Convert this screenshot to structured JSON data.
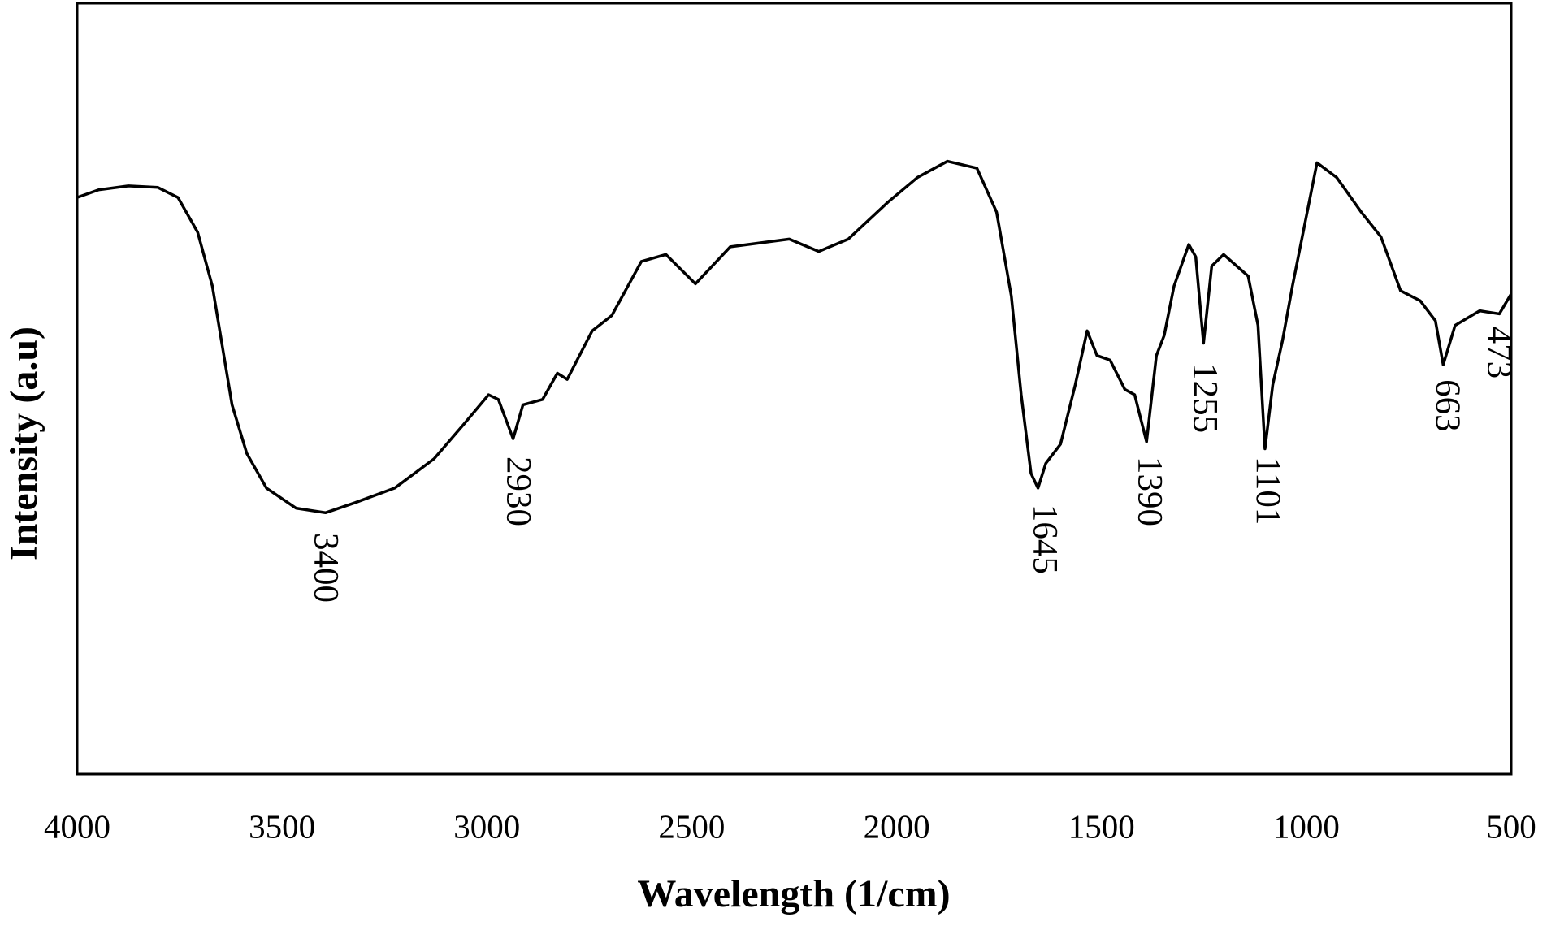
{
  "chart_data": {
    "type": "line",
    "xlabel": "Wavelength (1/cm)",
    "ylabel": "Intensity (a.u)",
    "xlim": [
      4000,
      500
    ],
    "ylim": [
      0,
      100
    ],
    "xticks": [
      4000,
      3500,
      3000,
      2500,
      2000,
      1500,
      1000,
      500
    ],
    "series": [
      {
        "color": "#000000",
        "x": [
          4000,
          3947,
          3875,
          3803,
          3754,
          3706,
          3670,
          3646,
          3622,
          3586,
          3538,
          3466,
          3394,
          3322,
          3225,
          3129,
          3056,
          2996,
          2972,
          2936,
          2912,
          2864,
          2828,
          2804,
          2743,
          2695,
          2623,
          2563,
          2491,
          2406,
          2262,
          2190,
          2118,
          2021,
          1949,
          1876,
          1804,
          1756,
          1720,
          1696,
          1672,
          1655,
          1636,
          1600,
          1564,
          1535,
          1511,
          1479,
          1443,
          1419,
          1390,
          1366,
          1347,
          1323,
          1287,
          1270,
          1251,
          1231,
          1202,
          1142,
          1118,
          1101,
          1082,
          1058,
          1034,
          1010,
          974,
          926,
          866,
          818,
          770,
          722,
          685,
          666,
          637,
          577,
          529,
          500
        ],
        "values": [
          74.8,
          75.8,
          76.3,
          76.1,
          74.8,
          70.3,
          63.3,
          55.6,
          47.9,
          41.6,
          37.1,
          34.5,
          33.9,
          35.2,
          37.1,
          40.9,
          45.4,
          49.2,
          48.6,
          43.5,
          47.9,
          48.6,
          52.0,
          51.2,
          57.5,
          59.5,
          66.5,
          67.4,
          63.6,
          68.4,
          69.4,
          67.8,
          69.4,
          74.2,
          77.4,
          79.5,
          78.6,
          72.9,
          62.0,
          49.2,
          39.0,
          37.1,
          40.3,
          42.8,
          50.5,
          57.5,
          54.3,
          53.7,
          49.9,
          49.2,
          43.1,
          54.3,
          56.9,
          63.3,
          68.7,
          67.1,
          55.9,
          65.9,
          67.4,
          64.6,
          58.2,
          42.2,
          50.5,
          56.3,
          63.3,
          69.7,
          79.3,
          77.4,
          72.9,
          69.7,
          62.7,
          61.4,
          58.8,
          53.1,
          58.2,
          60.1,
          59.7,
          62.3
        ]
      }
    ],
    "annotations": [
      {
        "text": "3400",
        "x": 3400,
        "y": 31.3
      },
      {
        "text": "2930",
        "x": 2930,
        "y": 41.2
      },
      {
        "text": "1645",
        "x": 1645,
        "y": 35.0
      },
      {
        "text": "1390",
        "x": 1390,
        "y": 41.2
      },
      {
        "text": "1255",
        "x": 1255,
        "y": 53.3
      },
      {
        "text": "1101",
        "x": 1101,
        "y": 41.2
      },
      {
        "text": "663",
        "x": 663,
        "y": 51.2
      },
      {
        "text": "473",
        "x": 537,
        "y": 58.1
      }
    ]
  }
}
